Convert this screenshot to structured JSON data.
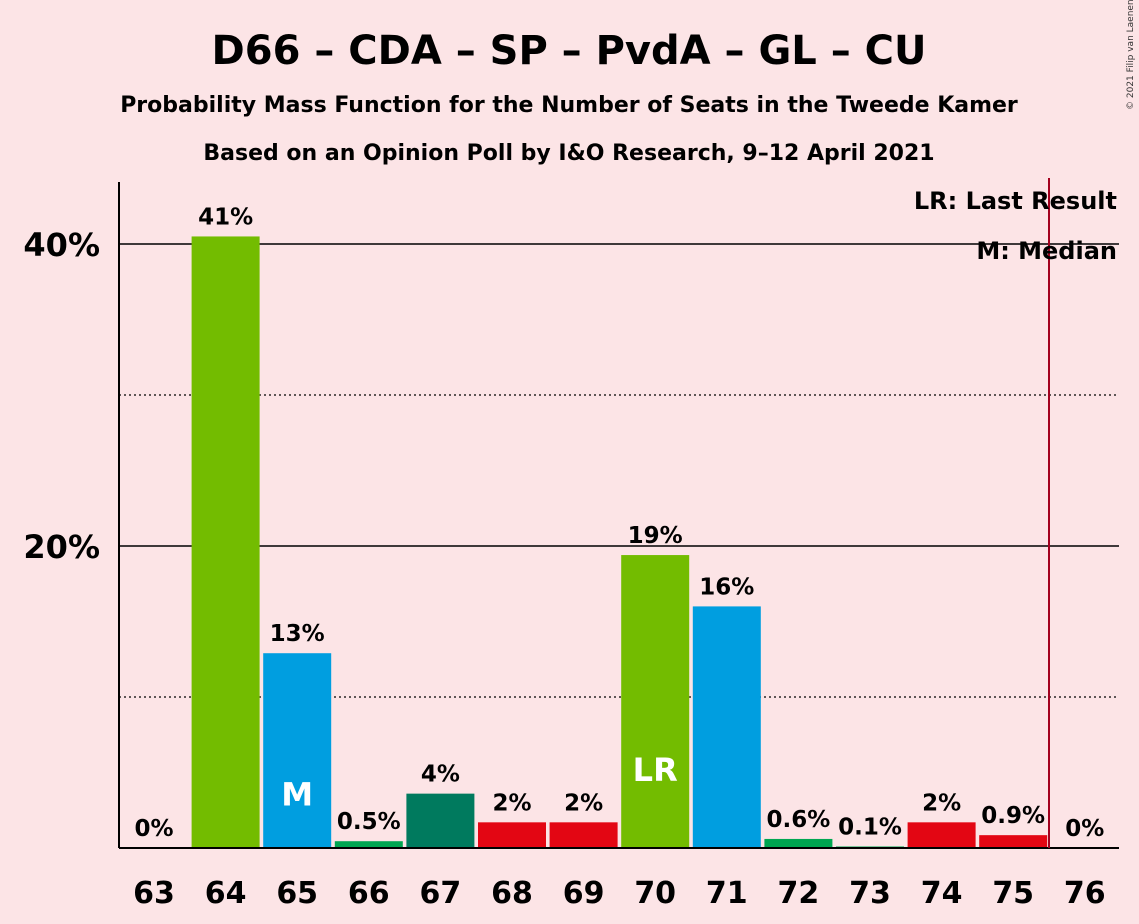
{
  "chart_data": {
    "type": "bar",
    "title": "D66 – CDA – SP – PvdA – GL – CU",
    "subtitle1": "Probability Mass Function for the Number of Seats in the Tweede Kamer",
    "subtitle2": "Based on an Opinion Poll by I&O Research, 9–12 April 2021",
    "copyright": "© 2021 Filip van Laenen",
    "categories": [
      "63",
      "64",
      "65",
      "66",
      "67",
      "68",
      "69",
      "70",
      "71",
      "72",
      "73",
      "74",
      "75",
      "76"
    ],
    "values": [
      0,
      40.5,
      12.9,
      0.45,
      3.6,
      1.7,
      1.7,
      19.4,
      16,
      0.6,
      0.1,
      1.7,
      0.85,
      0
    ],
    "labels": [
      "0%",
      "41%",
      "13%",
      "0.5%",
      "4%",
      "2%",
      "2%",
      "19%",
      "16%",
      "0.6%",
      "0.1%",
      "2%",
      "0.9%",
      "0%"
    ],
    "colors": [
      "#73bc00",
      "#73bc00",
      "#009ee0",
      "#00a651",
      "#007a5e",
      "#e30613",
      "#e30613",
      "#73bc00",
      "#009ee0",
      "#00a651",
      "#00a651",
      "#e30613",
      "#e30613",
      "#e30613"
    ],
    "bar_markers": {
      "65": "M",
      "70": "LR"
    },
    "ylim": [
      0,
      44
    ],
    "yticks": [
      {
        "value": 20,
        "label": "20%"
      },
      {
        "value": 40,
        "label": "40%"
      }
    ],
    "minor_gridlines": [
      10,
      30
    ],
    "majority_line_after": "75",
    "majority_line_color": "#a3001e",
    "legend": {
      "lr": "LR: Last Result",
      "median": "M: Median",
      "position": "top-right"
    }
  }
}
